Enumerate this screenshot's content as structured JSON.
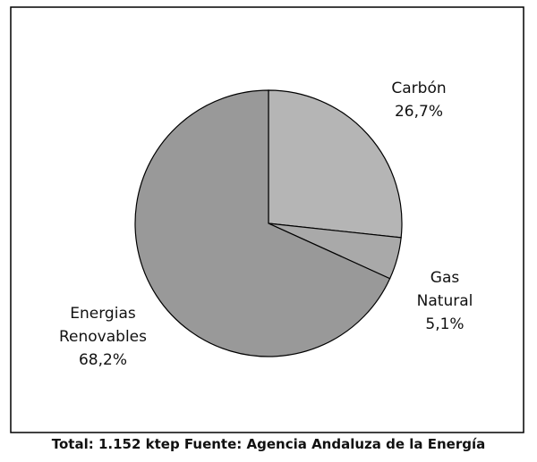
{
  "chart_data": {
    "type": "pie",
    "categories": [
      "Carbón",
      "Gas Natural",
      "Energias Renovables"
    ],
    "values": [
      26.7,
      5.1,
      68.2
    ],
    "value_labels": [
      "26,7%",
      "5,1%",
      "68,2%"
    ],
    "colors": [
      "#b5b5b5",
      "#a9a9a9",
      "#999999"
    ],
    "footer": "Total: 1.152 ktep Fuente: Agencia Andaluza de la Energía"
  }
}
